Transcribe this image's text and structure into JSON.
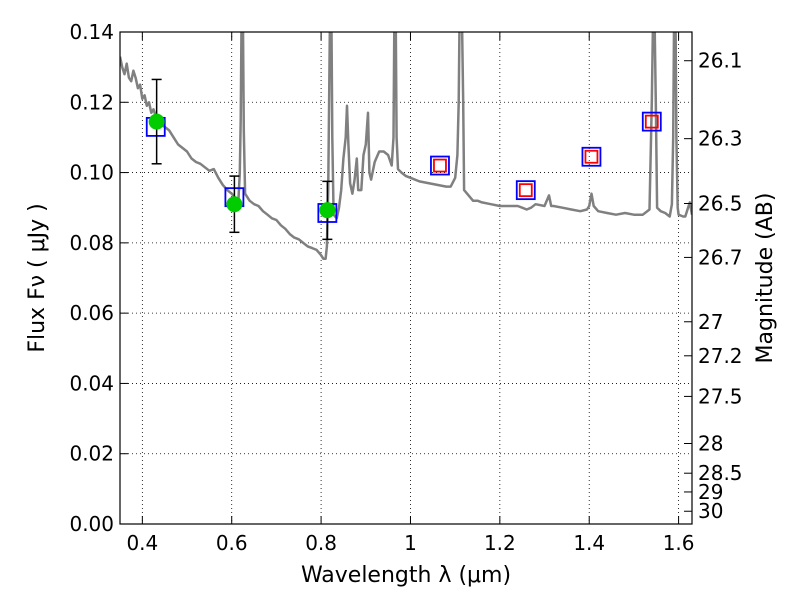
{
  "chart_data": {
    "type": "scatter",
    "title": "",
    "xlabel": "Wavelength  λ (μm)",
    "ylabel": "Flux  Fν  ( μJy )",
    "ylabel_right": "Magnitude (AB)",
    "xlim": [
      0.35,
      1.63
    ],
    "ylim": [
      0.0,
      0.14
    ],
    "grid": true,
    "x_ticks": [
      {
        "value": 0.4,
        "label": "0.4"
      },
      {
        "value": 0.6,
        "label": "0.6"
      },
      {
        "value": 0.8,
        "label": "0.8"
      },
      {
        "value": 1.0,
        "label": "1"
      },
      {
        "value": 1.2,
        "label": "1.2"
      },
      {
        "value": 1.4,
        "label": "1.4"
      },
      {
        "value": 1.6,
        "label": "1.6"
      }
    ],
    "y_ticks": [
      {
        "value": 0.0,
        "label": "0.00"
      },
      {
        "value": 0.02,
        "label": "0.02"
      },
      {
        "value": 0.04,
        "label": "0.04"
      },
      {
        "value": 0.06,
        "label": "0.06"
      },
      {
        "value": 0.08,
        "label": "0.08"
      },
      {
        "value": 0.1,
        "label": "0.10"
      },
      {
        "value": 0.12,
        "label": "0.12"
      },
      {
        "value": 0.14,
        "label": "0.14"
      }
    ],
    "right_ticks": [
      {
        "value": 26.1,
        "label": "26.1"
      },
      {
        "value": 26.3,
        "label": "26.3"
      },
      {
        "value": 26.5,
        "label": "26.5"
      },
      {
        "value": 26.7,
        "label": "26.7"
      },
      {
        "value": 27.0,
        "label": "27"
      },
      {
        "value": 27.2,
        "label": "27.2"
      },
      {
        "value": 27.5,
        "label": "27.5"
      },
      {
        "value": 28.0,
        "label": "28"
      },
      {
        "value": 28.5,
        "label": "28.5"
      },
      {
        "value": 29.0,
        "label": "29"
      },
      {
        "value": 30.0,
        "label": "30"
      }
    ],
    "series": [
      {
        "kind": "line",
        "color": "#808080",
        "points": [
          [
            0.35,
            0.133
          ],
          [
            0.355,
            0.13
          ],
          [
            0.36,
            0.128
          ],
          [
            0.365,
            0.131
          ],
          [
            0.37,
            0.127
          ],
          [
            0.375,
            0.126
          ],
          [
            0.38,
            0.129
          ],
          [
            0.385,
            0.127
          ],
          [
            0.39,
            0.124
          ],
          [
            0.395,
            0.125
          ],
          [
            0.4,
            0.121
          ],
          [
            0.405,
            0.122
          ],
          [
            0.41,
            0.119
          ],
          [
            0.415,
            0.12
          ],
          [
            0.42,
            0.117
          ],
          [
            0.425,
            0.118
          ],
          [
            0.43,
            0.116
          ],
          [
            0.44,
            0.114
          ],
          [
            0.45,
            0.113
          ],
          [
            0.46,
            0.112
          ],
          [
            0.47,
            0.11
          ],
          [
            0.48,
            0.108
          ],
          [
            0.49,
            0.107
          ],
          [
            0.5,
            0.106
          ],
          [
            0.51,
            0.104
          ],
          [
            0.52,
            0.103
          ],
          [
            0.53,
            0.1025
          ],
          [
            0.54,
            0.1015
          ],
          [
            0.55,
            0.1005
          ],
          [
            0.56,
            0.101
          ],
          [
            0.57,
            0.0985
          ],
          [
            0.58,
            0.0965
          ],
          [
            0.59,
            0.095
          ],
          [
            0.6,
            0.094
          ],
          [
            0.61,
            0.0925
          ],
          [
            0.615,
            0.092
          ],
          [
            0.618,
            0.1
          ],
          [
            0.62,
            0.115
          ],
          [
            0.622,
            0.145
          ],
          [
            0.625,
            0.145
          ],
          [
            0.627,
            0.112
          ],
          [
            0.63,
            0.094
          ],
          [
            0.64,
            0.092
          ],
          [
            0.65,
            0.091
          ],
          [
            0.66,
            0.0905
          ],
          [
            0.67,
            0.089
          ],
          [
            0.68,
            0.088
          ],
          [
            0.69,
            0.087
          ],
          [
            0.7,
            0.0865
          ],
          [
            0.71,
            0.085
          ],
          [
            0.72,
            0.084
          ],
          [
            0.73,
            0.0825
          ],
          [
            0.74,
            0.0815
          ],
          [
            0.75,
            0.081
          ],
          [
            0.76,
            0.08
          ],
          [
            0.77,
            0.079
          ],
          [
            0.78,
            0.0785
          ],
          [
            0.79,
            0.078
          ],
          [
            0.8,
            0.0765
          ],
          [
            0.805,
            0.0755
          ],
          [
            0.81,
            0.0755
          ],
          [
            0.813,
            0.079
          ],
          [
            0.816,
            0.095
          ],
          [
            0.818,
            0.12
          ],
          [
            0.82,
            0.145
          ],
          [
            0.823,
            0.145
          ],
          [
            0.825,
            0.11
          ],
          [
            0.828,
            0.088
          ],
          [
            0.835,
            0.087
          ],
          [
            0.84,
            0.09
          ],
          [
            0.845,
            0.095
          ],
          [
            0.85,
            0.104
          ],
          [
            0.855,
            0.11
          ],
          [
            0.858,
            0.119
          ],
          [
            0.861,
            0.108
          ],
          [
            0.865,
            0.097
          ],
          [
            0.87,
            0.094
          ],
          [
            0.875,
            0.098
          ],
          [
            0.88,
            0.104
          ],
          [
            0.883,
            0.095
          ],
          [
            0.89,
            0.095
          ],
          [
            0.895,
            0.105
          ],
          [
            0.9,
            0.108
          ],
          [
            0.905,
            0.117
          ],
          [
            0.908,
            0.1
          ],
          [
            0.912,
            0.098
          ],
          [
            0.92,
            0.103
          ],
          [
            0.93,
            0.106
          ],
          [
            0.94,
            0.106
          ],
          [
            0.95,
            0.105
          ],
          [
            0.958,
            0.102
          ],
          [
            0.962,
            0.11
          ],
          [
            0.964,
            0.145
          ],
          [
            0.967,
            0.145
          ],
          [
            0.969,
            0.11
          ],
          [
            0.972,
            0.101
          ],
          [
            0.98,
            0.1
          ],
          [
            0.99,
            0.099
          ],
          [
            1.0,
            0.0985
          ],
          [
            1.02,
            0.0975
          ],
          [
            1.04,
            0.097
          ],
          [
            1.06,
            0.0965
          ],
          [
            1.08,
            0.096
          ],
          [
            1.09,
            0.096
          ],
          [
            1.1,
            0.0985
          ],
          [
            1.105,
            0.105
          ],
          [
            1.108,
            0.12
          ],
          [
            1.11,
            0.145
          ],
          [
            1.115,
            0.145
          ],
          [
            1.118,
            0.12
          ],
          [
            1.12,
            0.095
          ],
          [
            1.13,
            0.0935
          ],
          [
            1.14,
            0.092
          ],
          [
            1.15,
            0.092
          ],
          [
            1.16,
            0.0915
          ],
          [
            1.18,
            0.091
          ],
          [
            1.2,
            0.0905
          ],
          [
            1.22,
            0.0905
          ],
          [
            1.24,
            0.0905
          ],
          [
            1.25,
            0.09
          ],
          [
            1.26,
            0.0895
          ],
          [
            1.27,
            0.09
          ],
          [
            1.28,
            0.091
          ],
          [
            1.3,
            0.0905
          ],
          [
            1.31,
            0.0935
          ],
          [
            1.315,
            0.0905
          ],
          [
            1.32,
            0.0905
          ],
          [
            1.34,
            0.09
          ],
          [
            1.36,
            0.0895
          ],
          [
            1.38,
            0.089
          ],
          [
            1.395,
            0.0895
          ],
          [
            1.4,
            0.0905
          ],
          [
            1.405,
            0.094
          ],
          [
            1.41,
            0.0905
          ],
          [
            1.42,
            0.089
          ],
          [
            1.44,
            0.0885
          ],
          [
            1.46,
            0.088
          ],
          [
            1.48,
            0.0885
          ],
          [
            1.5,
            0.088
          ],
          [
            1.52,
            0.088
          ],
          [
            1.535,
            0.0895
          ],
          [
            1.54,
            0.12
          ],
          [
            1.543,
            0.145
          ],
          [
            1.546,
            0.145
          ],
          [
            1.549,
            0.12
          ],
          [
            1.552,
            0.09
          ],
          [
            1.56,
            0.089
          ],
          [
            1.57,
            0.0885
          ],
          [
            1.575,
            0.088
          ],
          [
            1.58,
            0.0875
          ],
          [
            1.585,
            0.091
          ],
          [
            1.588,
            0.11
          ],
          [
            1.59,
            0.145
          ],
          [
            1.593,
            0.145
          ],
          [
            1.595,
            0.11
          ],
          [
            1.598,
            0.09
          ],
          [
            1.6,
            0.088
          ],
          [
            1.61,
            0.0875
          ],
          [
            1.615,
            0.0875
          ],
          [
            1.62,
            0.0895
          ],
          [
            1.625,
            0.0915
          ],
          [
            1.63,
            0.088
          ]
        ]
      },
      {
        "kind": "points",
        "marker": "open-square",
        "color": "#0000ff",
        "points": [
          [
            0.43,
            0.113
          ],
          [
            0.606,
            0.093
          ],
          [
            0.814,
            0.0885
          ],
          [
            1.066,
            0.102
          ],
          [
            1.258,
            0.095
          ],
          [
            1.405,
            0.1045
          ],
          [
            1.54,
            0.1145
          ]
        ]
      },
      {
        "kind": "points",
        "marker": "open-square",
        "color": "#ff0000",
        "points": [
          [
            1.066,
            0.102
          ],
          [
            1.258,
            0.095
          ],
          [
            1.405,
            0.1045
          ],
          [
            1.54,
            0.1145
          ]
        ]
      },
      {
        "kind": "errorbar",
        "marker": "filled-circle",
        "color": "#00cc00",
        "error_color": "#000000",
        "points": [
          {
            "x": 0.432,
            "y": 0.1145,
            "ylo": 0.1025,
            "yhi": 0.1265
          },
          {
            "x": 0.606,
            "y": 0.091,
            "ylo": 0.083,
            "yhi": 0.099
          },
          {
            "x": 0.814,
            "y": 0.0893,
            "ylo": 0.081,
            "yhi": 0.0975
          }
        ]
      }
    ]
  }
}
